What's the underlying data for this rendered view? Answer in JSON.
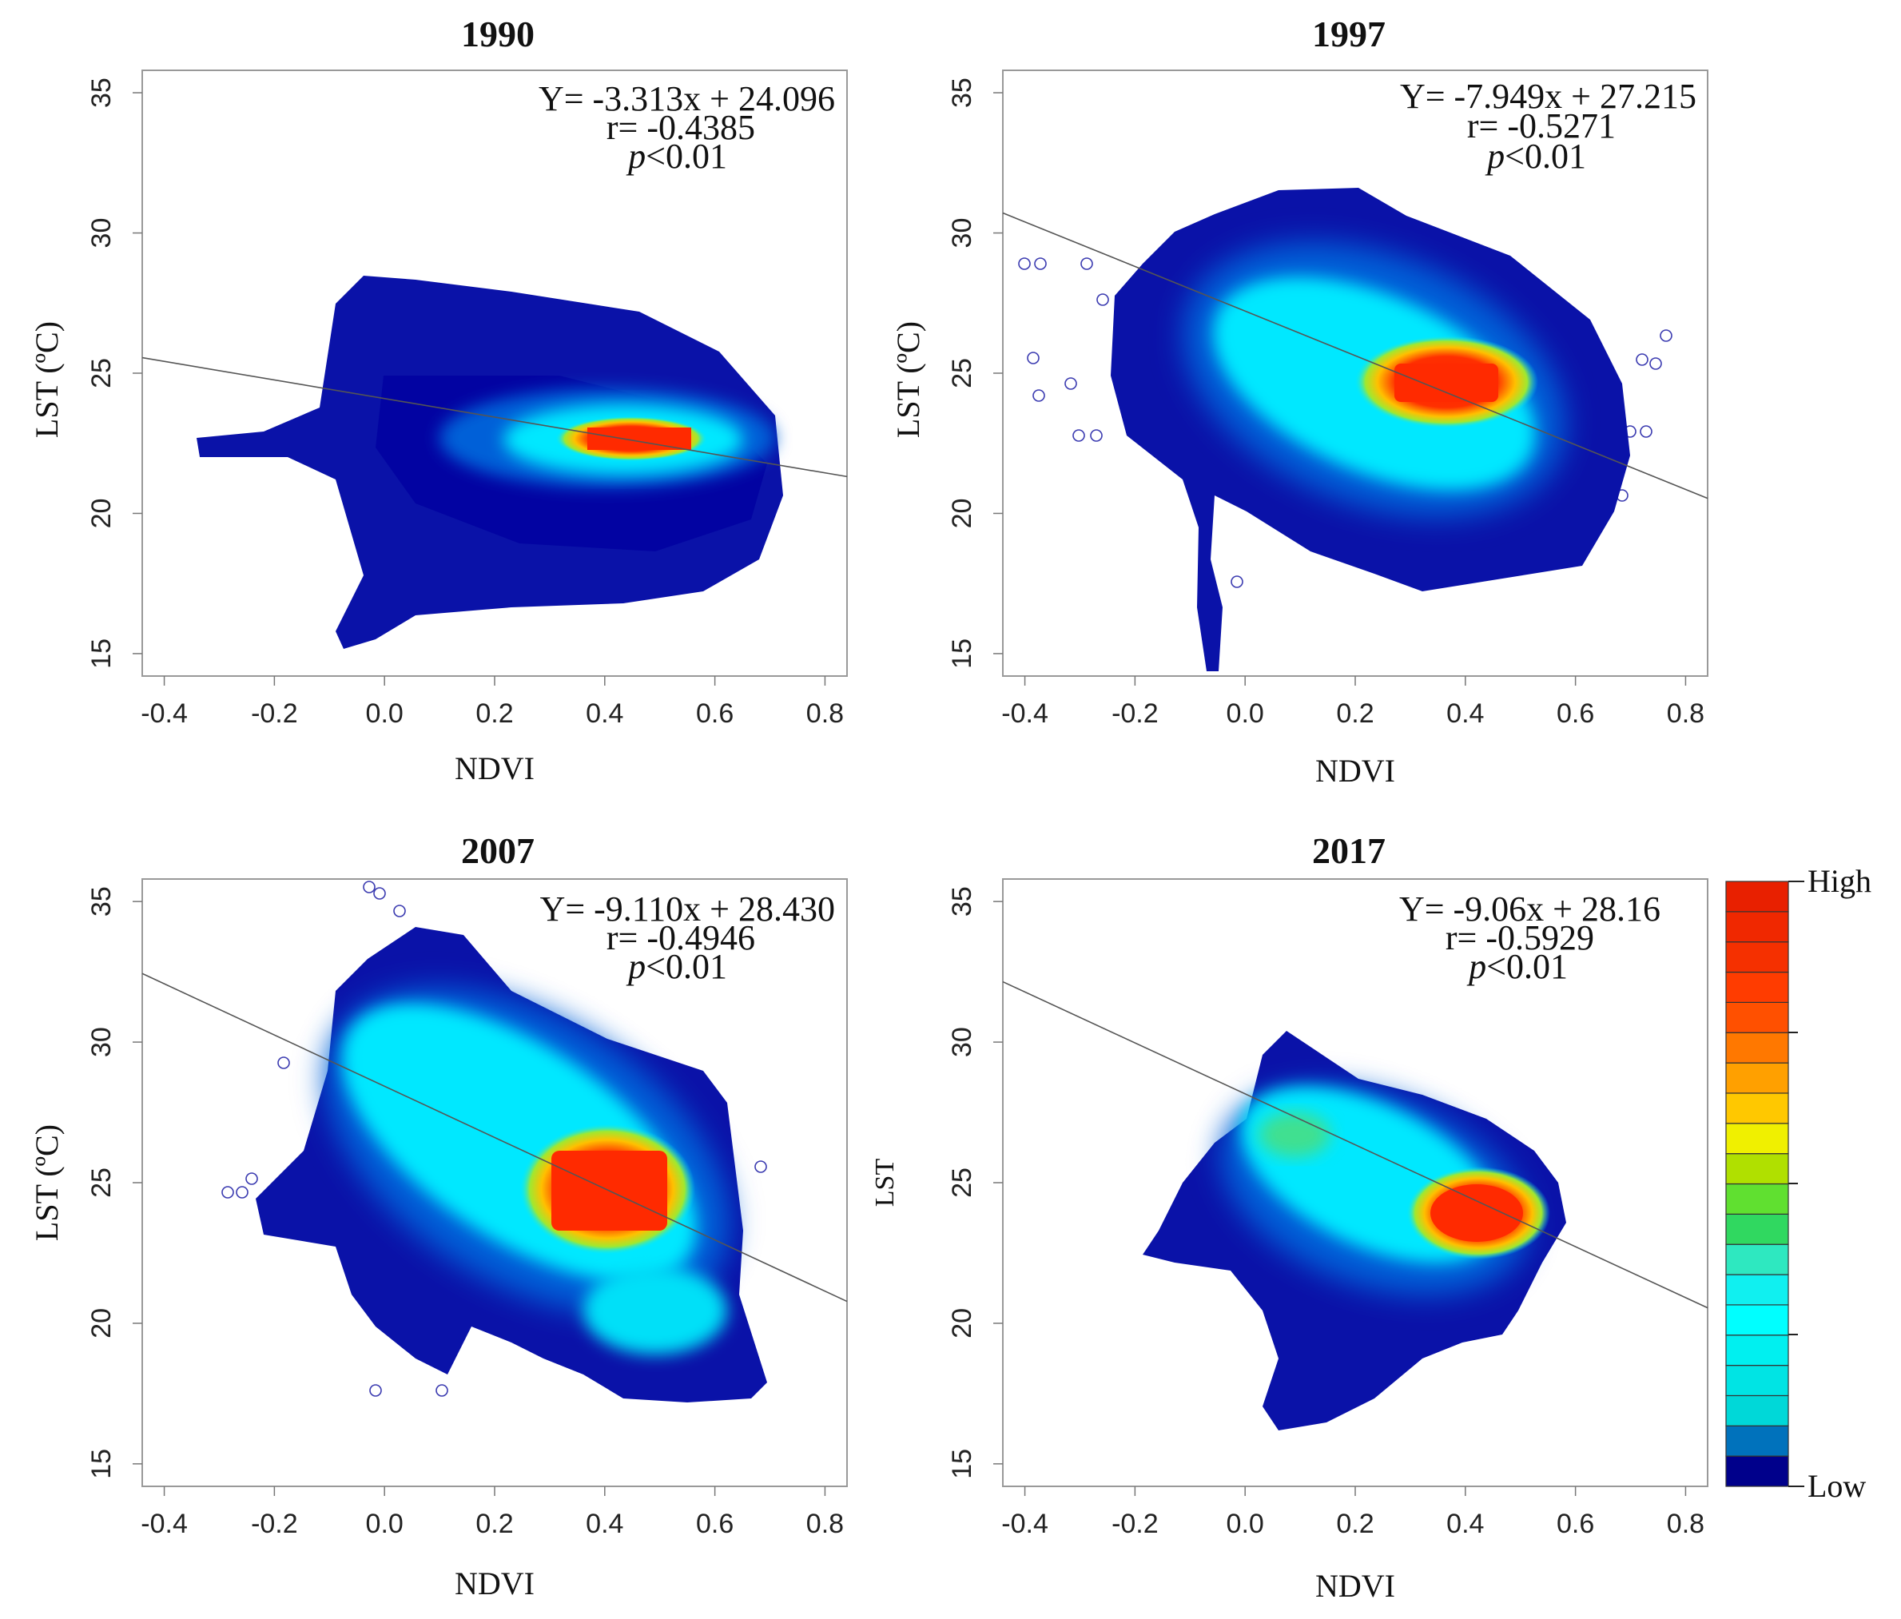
{
  "chart_data": [
    {
      "type": "scatter",
      "title": "1990",
      "xlabel": "NDVI",
      "ylabel": "LST (ºC)",
      "xlim": [
        -0.44,
        0.84
      ],
      "ylim": [
        14.2,
        35.8
      ],
      "xticks": [
        "-0.4",
        "-0.2",
        "0.0",
        "0.2",
        "0.4",
        "0.6",
        "0.8"
      ],
      "yticks": [
        "15",
        "20",
        "25",
        "30",
        "35"
      ],
      "regression": {
        "slope": -3.313,
        "intercept": 24.096
      },
      "annotation": {
        "equation": "Y= -3.313x + 24.096",
        "r": "r= -0.4385",
        "p_symbol": "p",
        "p_rest": "<0.01"
      },
      "density_cloud": {
        "extent": {
          "x": [
            -0.34,
            0.73
          ],
          "y": [
            15.0,
            28.8
          ]
        },
        "high_density_center": {
          "x": 0.47,
          "y": 22.6
        }
      }
    },
    {
      "type": "scatter",
      "title": "1997",
      "xlabel": "NDVI",
      "ylabel": "LST (ºC)",
      "xlim": [
        -0.44,
        0.84
      ],
      "ylim": [
        14.2,
        35.8
      ],
      "xticks": [
        "-0.4",
        "-0.2",
        "0.0",
        "0.2",
        "0.4",
        "0.6",
        "0.8"
      ],
      "yticks": [
        "15",
        "20",
        "25",
        "30",
        "35"
      ],
      "regression": {
        "slope": -7.949,
        "intercept": 27.215
      },
      "annotation": {
        "equation": "Y= -7.949x + 27.215",
        "r": "r= -0.5271",
        "p_symbol": "p",
        "p_rest": "<0.01"
      },
      "density_cloud": {
        "extent": {
          "x": [
            -0.4,
            0.77
          ],
          "y": [
            14.5,
            31.4
          ]
        },
        "high_density_center": {
          "x": 0.35,
          "y": 24.5
        }
      }
    },
    {
      "type": "scatter",
      "title": "2007",
      "xlabel": "NDVI",
      "ylabel": "LST (ºC)",
      "xlim": [
        -0.44,
        0.84
      ],
      "ylim": [
        14.2,
        35.8
      ],
      "xticks": [
        "-0.4",
        "-0.2",
        "0.0",
        "0.2",
        "0.4",
        "0.6",
        "0.8"
      ],
      "yticks": [
        "15",
        "20",
        "25",
        "30",
        "35"
      ],
      "regression": {
        "slope": -9.11,
        "intercept": 28.43
      },
      "annotation": {
        "equation": "Y= -9.110x + 28.430",
        "r": "r= -0.4946",
        "p_symbol": "p",
        "p_rest": "<0.01"
      },
      "density_cloud": {
        "extent": {
          "x": [
            -0.29,
            0.68
          ],
          "y": [
            17.0,
            35.8
          ]
        },
        "high_density_center": {
          "x": 0.42,
          "y": 24.8
        }
      }
    },
    {
      "type": "scatter",
      "title": "2017",
      "xlabel": "NDVI",
      "ylabel": "LST",
      "xlim": [
        -0.44,
        0.84
      ],
      "ylim": [
        14.2,
        35.8
      ],
      "xticks": [
        "-0.4",
        "-0.2",
        "0.0",
        "0.2",
        "0.4",
        "0.6",
        "0.8"
      ],
      "yticks": [
        "15",
        "20",
        "25",
        "30",
        "35"
      ],
      "regression": {
        "slope": -9.06,
        "intercept": 28.16
      },
      "annotation": {
        "equation": "Y= -9.06x + 28.16",
        "r": "r= -0.5929",
        "p_symbol": "p",
        "p_rest": "<0.01"
      },
      "density_cloud": {
        "extent": {
          "x": [
            -0.18,
            0.58
          ],
          "y": [
            16.5,
            30.8
          ]
        },
        "high_density_center": {
          "x": 0.36,
          "y": 23.6
        }
      }
    }
  ],
  "legend": {
    "high_label": "High",
    "low_label": "Low",
    "colors": [
      "#00008B",
      "#0072BC",
      "#00D8D8",
      "#00E4E4",
      "#00F0F0",
      "#00FFFF",
      "#10F0F0",
      "#2EE8C0",
      "#30D860",
      "#60E030",
      "#B0E000",
      "#F0F000",
      "#FFC800",
      "#FFA000",
      "#FF7800",
      "#FF5000",
      "#FF3C00",
      "#F53000",
      "#F02800",
      "#E82000"
    ]
  }
}
